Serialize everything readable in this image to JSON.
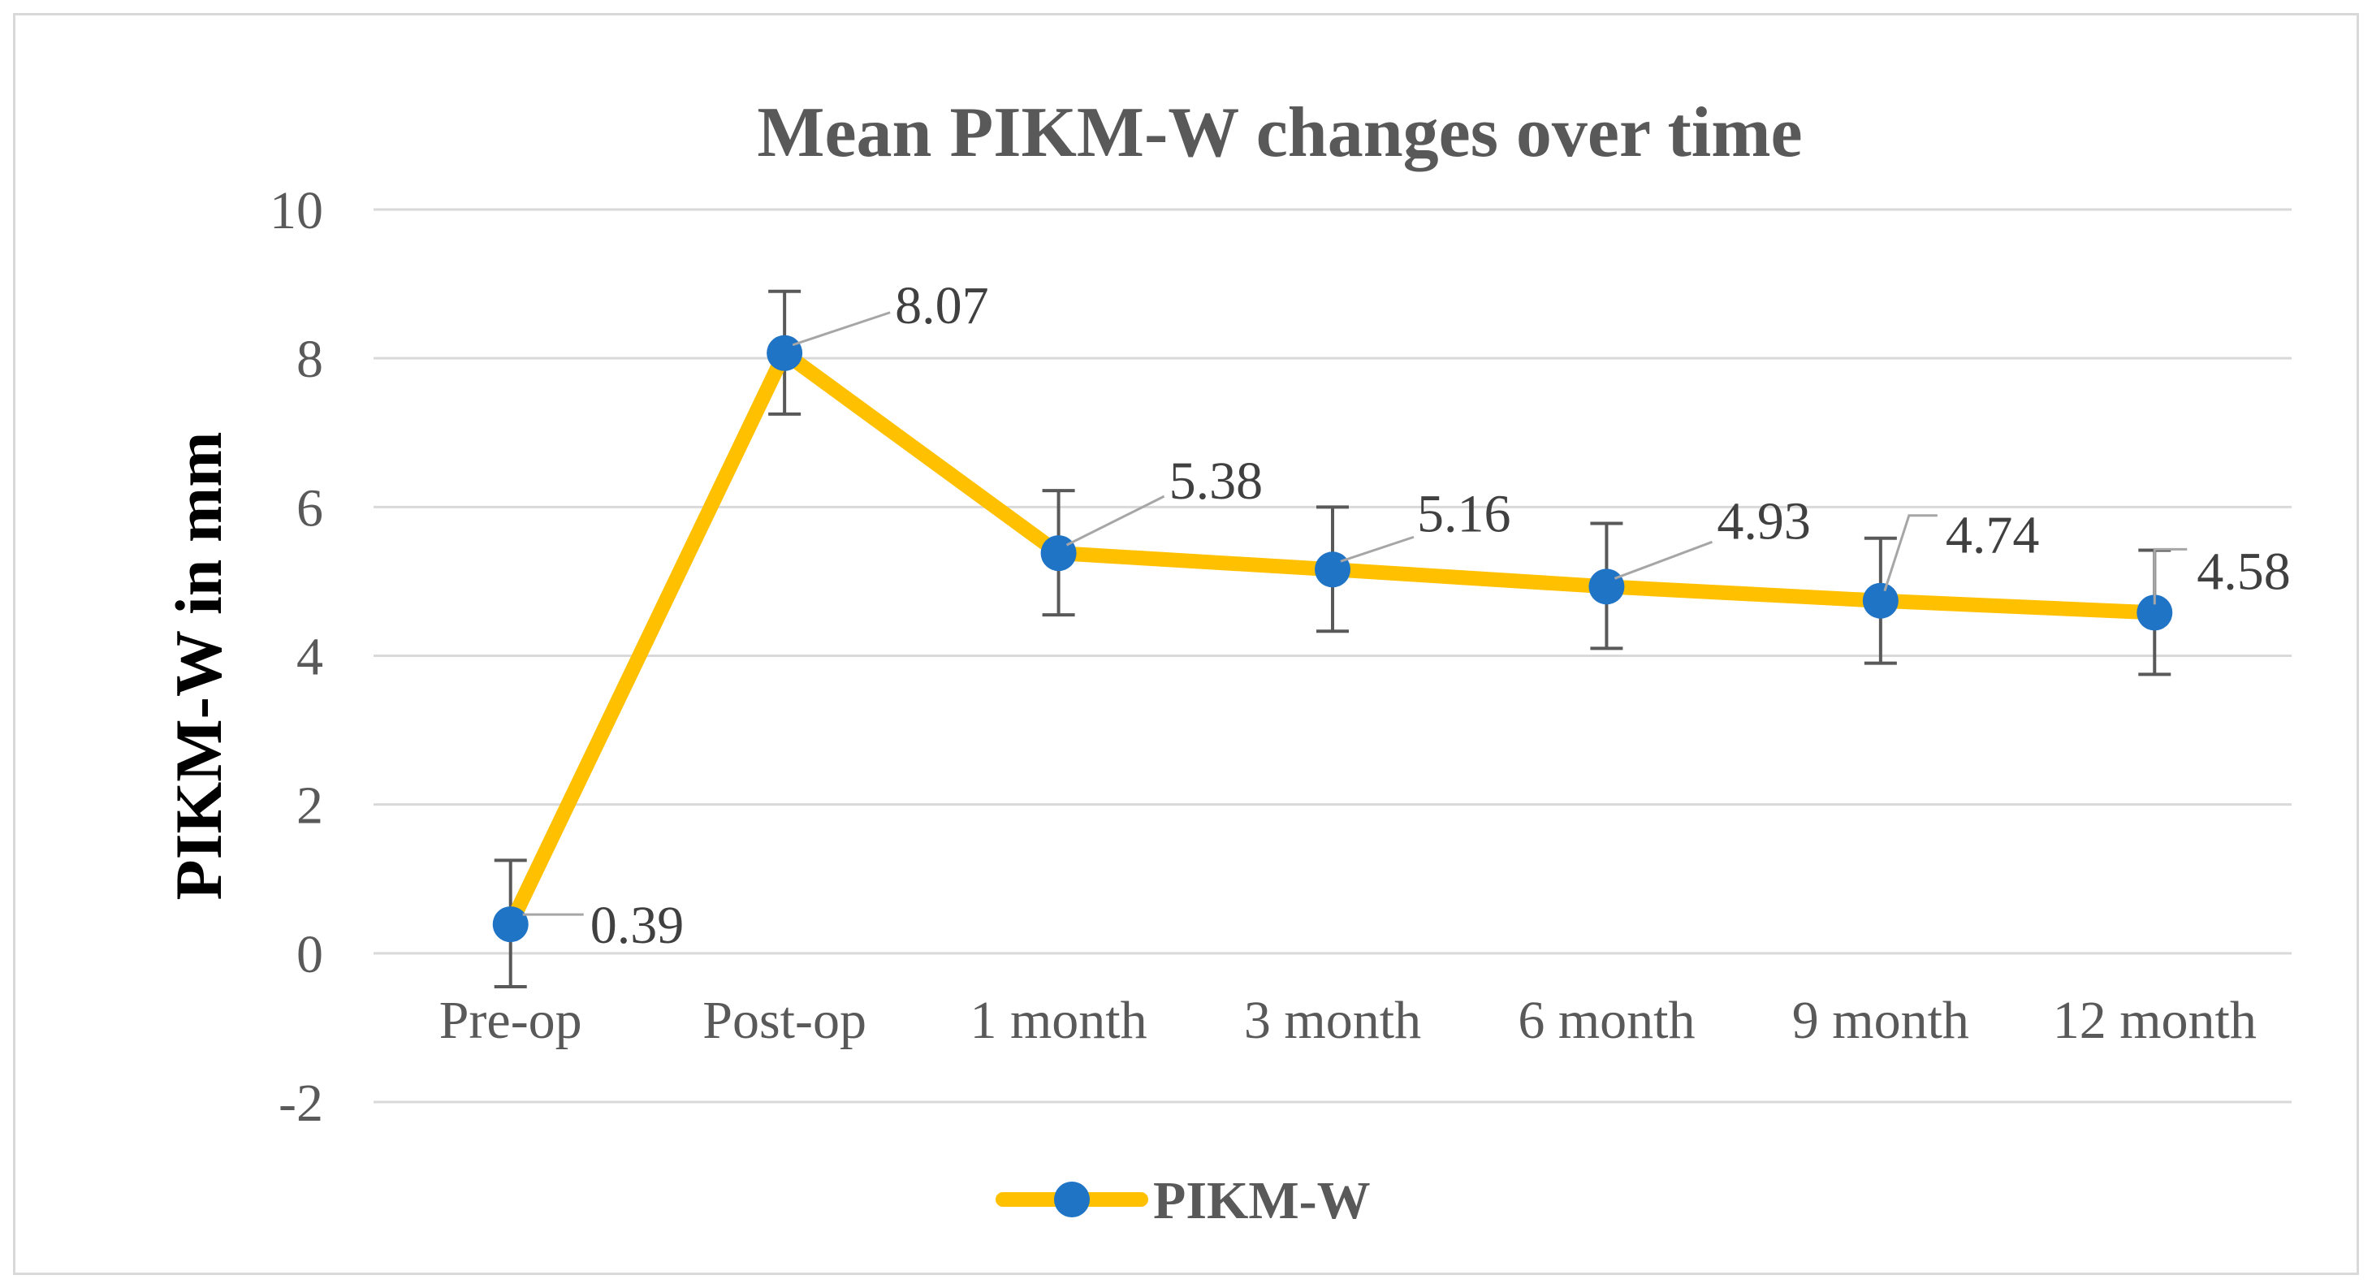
{
  "chart_data": {
    "type": "line",
    "title": "Mean PIKM-W changes over time",
    "xlabel": "",
    "ylabel": "PIKM-W in mm",
    "categories": [
      "Pre-op",
      "Post-op",
      "1 month",
      "3 month",
      "6 month",
      "9 month",
      "12 month"
    ],
    "series": [
      {
        "name": "PIKM-W",
        "values": [
          0.39,
          8.07,
          5.38,
          5.16,
          4.93,
          4.74,
          4.58
        ],
        "error_low": [
          -0.45,
          7.25,
          4.55,
          4.33,
          4.1,
          3.9,
          3.75
        ],
        "error_high": [
          1.25,
          8.9,
          6.22,
          6.0,
          5.78,
          5.58,
          5.42
        ],
        "data_labels": [
          "0.39",
          "8.07",
          "5.38",
          "5.16",
          "4.93",
          "4.74",
          "4.58"
        ],
        "line_color": "#FFC000",
        "marker_color": "#1F74C6"
      }
    ],
    "ylim": [
      -2,
      10
    ],
    "yticks": [
      -2,
      0,
      2,
      4,
      6,
      8,
      10
    ],
    "grid": true,
    "legend": "bottom",
    "colors": {
      "gridline": "#d9d9d9",
      "error_bar": "#595959",
      "leader_line": "#a6a6a6",
      "frame": "#d9d9d9"
    }
  }
}
